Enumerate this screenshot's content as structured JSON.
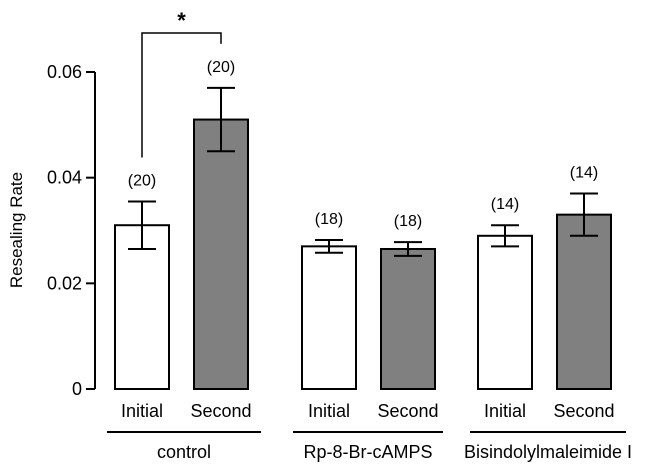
{
  "chart_data": {
    "type": "bar",
    "ylabel": "Resealing Rate",
    "ylim": [
      0,
      0.06
    ],
    "yticks": [
      "0",
      "0.02",
      "0.04",
      "0.06"
    ],
    "ytick_values": [
      0,
      0.02,
      0.04,
      0.06
    ],
    "grid": false,
    "colors": {
      "Initial": "#ffffff",
      "Second": "#808080",
      "edge": "#000000"
    },
    "groups": [
      {
        "label": "control",
        "bars": [
          {
            "category": "Initial",
            "value": 0.031,
            "error": 0.0045,
            "n": "(20)"
          },
          {
            "category": "Second",
            "value": 0.051,
            "error": 0.006,
            "n": "(20)"
          }
        ]
      },
      {
        "label": "Rp-8-Br-cAMPS",
        "bars": [
          {
            "category": "Initial",
            "value": 0.027,
            "error": 0.0012,
            "n": "(18)"
          },
          {
            "category": "Second",
            "value": 0.0265,
            "error": 0.0013,
            "n": "(18)"
          }
        ]
      },
      {
        "label": "Bisindolylmaleimide I",
        "bars": [
          {
            "category": "Initial",
            "value": 0.029,
            "error": 0.002,
            "n": "(14)"
          },
          {
            "category": "Second",
            "value": 0.033,
            "error": 0.004,
            "n": "(14)"
          }
        ]
      }
    ],
    "annotations": [
      {
        "text": "*",
        "between": [
          "control.Initial",
          "control.Second"
        ]
      }
    ]
  }
}
